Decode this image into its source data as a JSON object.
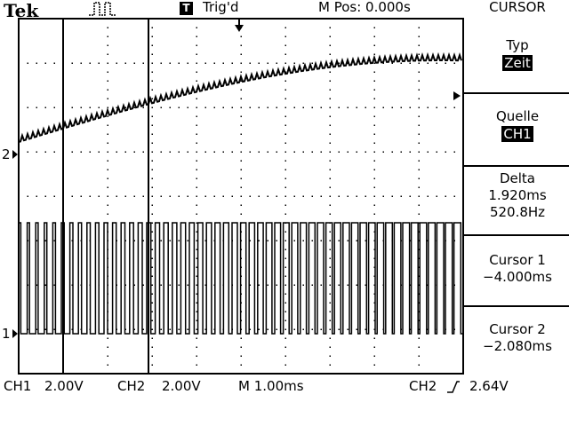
{
  "header": {
    "brand": "Tek",
    "trigger_badge": "T",
    "trigger_status": "Trig'd",
    "m_pos": "M Pos: 0.000s",
    "menu_title": "CURSOR"
  },
  "menu": {
    "typ": {
      "label": "Typ",
      "value": "Zeit"
    },
    "quelle": {
      "label": "Quelle",
      "value": "CH1"
    },
    "delta": {
      "label": "Delta",
      "time": "1.920ms",
      "freq": "520.8Hz"
    },
    "cursor1": {
      "label": "Cursor 1",
      "value": "−4.000ms"
    },
    "cursor2": {
      "label": "Cursor 2",
      "value": "−2.080ms"
    }
  },
  "markers": {
    "ch2": "2",
    "ch1": "1"
  },
  "status": {
    "ch1_label": "CH1",
    "ch1_scale": "2.00V",
    "ch2_label": "CH2",
    "ch2_scale": "2.00V",
    "timebase": "M 1.00ms",
    "trigger_source": "CH2",
    "trigger_level": "2.64V"
  },
  "colors": {
    "foreground": "#000000",
    "background": "#ffffff"
  }
}
